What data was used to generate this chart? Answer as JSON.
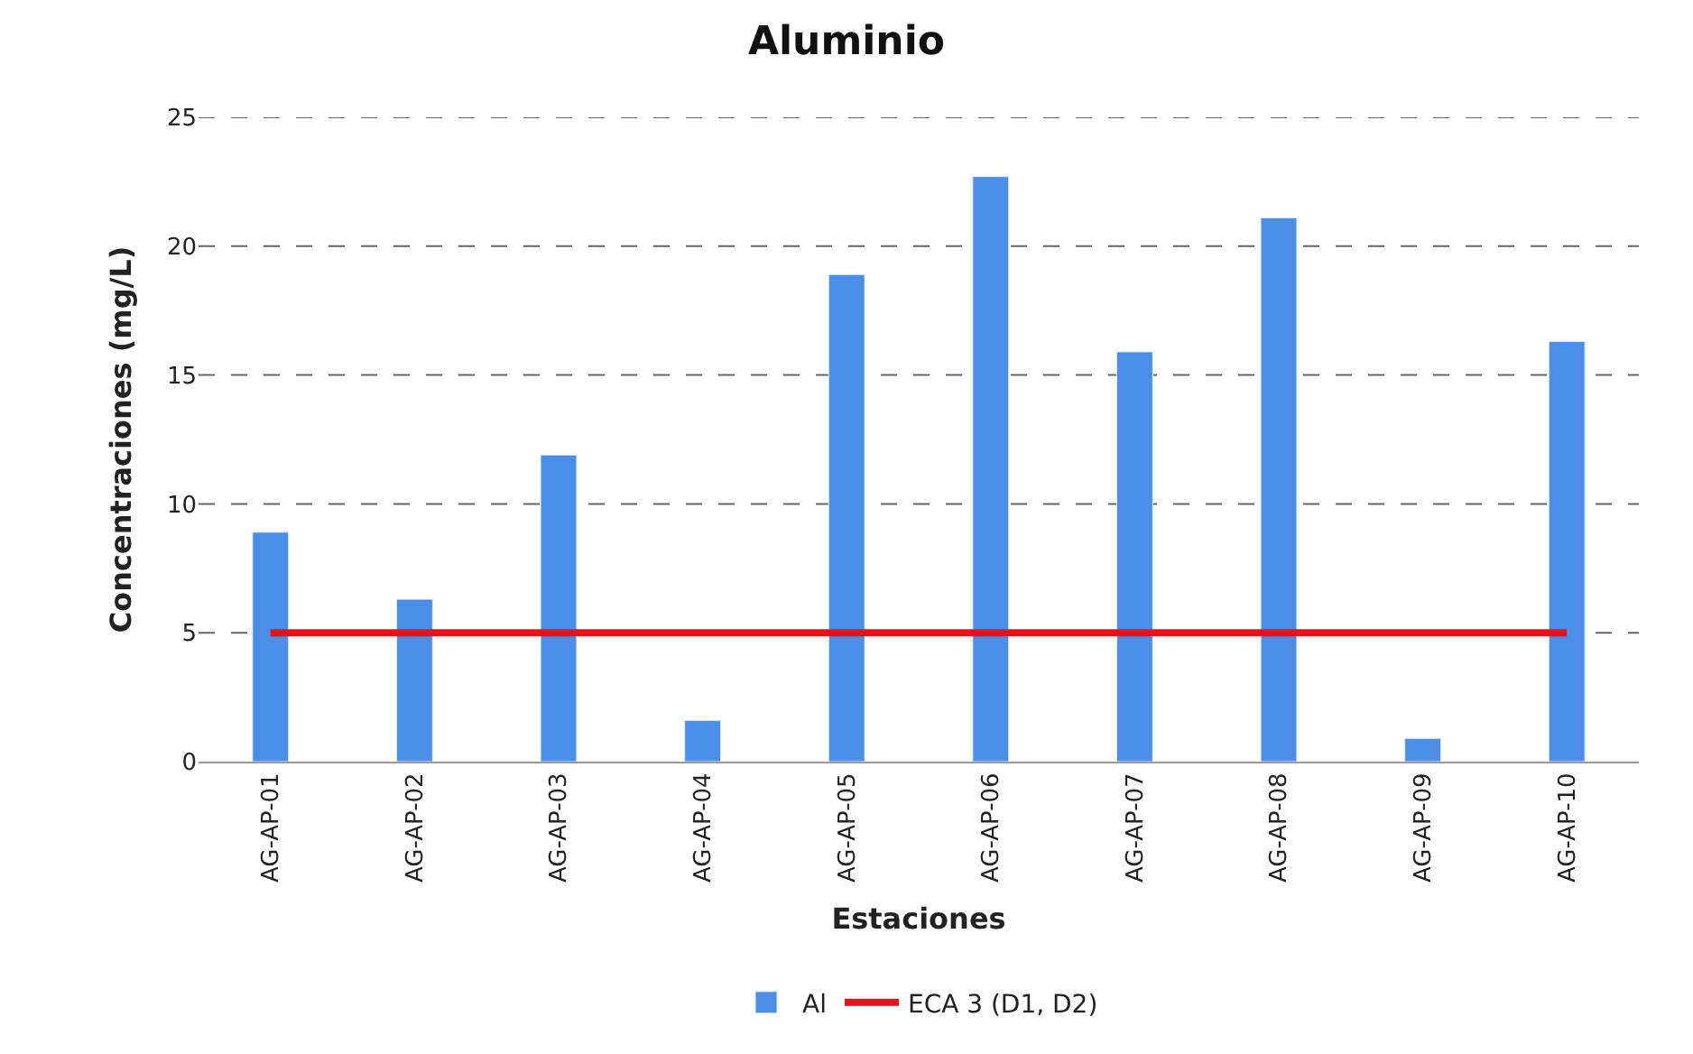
{
  "chart_data": {
    "type": "bar",
    "title": "Aluminio",
    "xlabel": "Estaciones",
    "ylabel": "Concentraciones (mg/L)",
    "categories": [
      "AG-AP-01",
      "AG-AP-02",
      "AG-AP-03",
      "AG-AP-04",
      "AG-AP-05",
      "AG-AP-06",
      "AG-AP-07",
      "AG-AP-08",
      "AG-AP-09",
      "AG-AP-10"
    ],
    "series": [
      {
        "name": "Al",
        "color": "#4a8ee8",
        "values": [
          8.9,
          6.3,
          11.9,
          1.6,
          18.9,
          22.7,
          15.9,
          21.1,
          0.9,
          16.3
        ]
      },
      {
        "name": "ECA 3 (D1, D2)",
        "type": "line",
        "color": "#e8121c",
        "values": [
          5,
          5,
          5,
          5,
          5,
          5,
          5,
          5,
          5,
          5
        ]
      }
    ],
    "ylim": [
      0,
      25
    ],
    "yticks": [
      0,
      5,
      10,
      15,
      20,
      25
    ],
    "grid": "y",
    "legend": "bottom"
  }
}
